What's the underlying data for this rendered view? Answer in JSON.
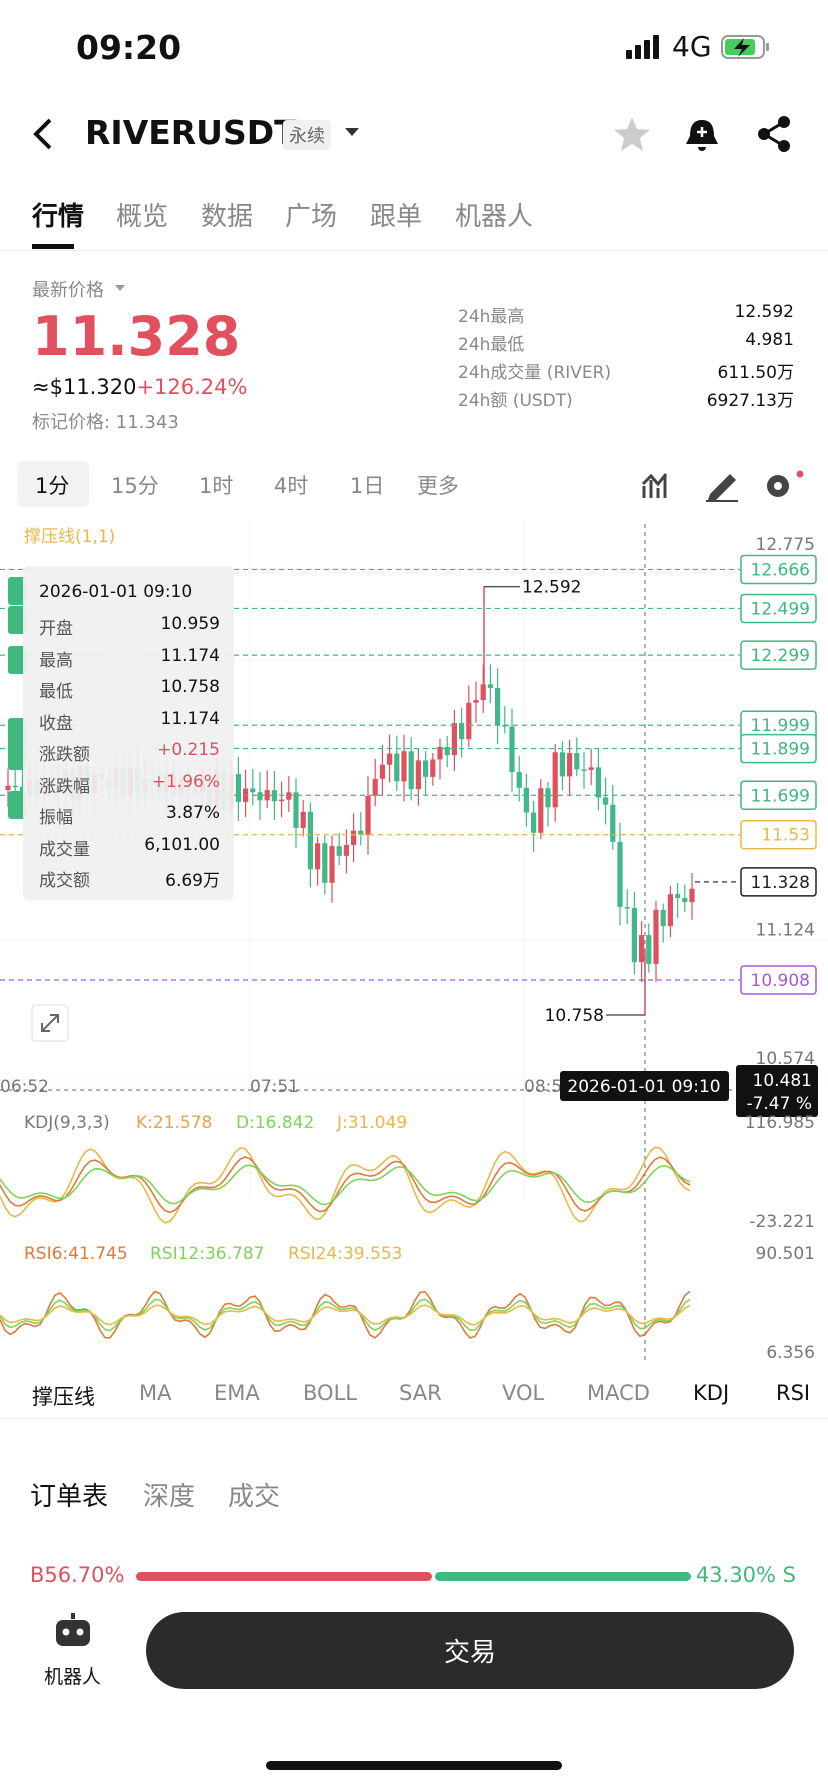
{
  "status": {
    "time": "09:20",
    "network": "4G"
  },
  "header": {
    "symbol": "RIVERUSDT",
    "tag": "永续"
  },
  "tabs": [
    "行情",
    "概览",
    "数据",
    "广场",
    "跟单",
    "机器人"
  ],
  "price": {
    "label": "最新价格",
    "last": "11.328",
    "usd": "≈$11.320",
    "change": "+126.24%",
    "mark": "标记价格: 11.343"
  },
  "stats": [
    [
      "24h最高",
      "12.592"
    ],
    [
      "24h最低",
      "4.981"
    ],
    [
      "24h成交量 (RIVER)",
      "611.50万"
    ],
    [
      "24h额 (USDT)",
      "6927.13万"
    ]
  ],
  "intervals": [
    "1分",
    "15分",
    "1时",
    "4时",
    "1日",
    "更多"
  ],
  "chart": {
    "indicator": "撑压线(1,1)",
    "axis": [
      "12.775",
      "11.124",
      "10.574"
    ],
    "levels": [
      {
        "label": "12.666",
        "color": "#3fb97d"
      },
      {
        "label": "12.499",
        "color": "#3fb97d"
      },
      {
        "label": "12.299",
        "color": "#3fb97d"
      },
      {
        "label": "11.999",
        "color": "#3fb97d"
      },
      {
        "label": "11.899",
        "color": "#3fb97d"
      },
      {
        "label": "11.699",
        "color": "#3fb97d"
      },
      {
        "label": "11.53",
        "color": "#e8b84a"
      },
      {
        "label": "11.328",
        "color": "#222222"
      },
      {
        "label": "10.908",
        "color": "#a35bd6"
      }
    ],
    "high": "12.592",
    "low": "10.758",
    "times": [
      "06:52",
      "07:51",
      "08:5"
    ],
    "cross_time": "2026-01-01 09:10",
    "cross_price": "10.481",
    "cross_change": "-7.47 %",
    "tooltip": {
      "time": "2026-01-01 09:10",
      "rows": [
        [
          "开盘",
          "10.959"
        ],
        [
          "最高",
          "11.174"
        ],
        [
          "最低",
          "10.758"
        ],
        [
          "收盘",
          "11.174"
        ],
        [
          "涨跌额",
          "+0.215"
        ],
        [
          "涨跌幅",
          "+1.96%"
        ],
        [
          "振幅",
          "3.87%"
        ],
        [
          "成交量",
          "6,101.00"
        ],
        [
          "成交额",
          "6.69万"
        ]
      ]
    }
  },
  "kdj": {
    "label": "KDJ(9,3,3)",
    "k": "K:21.578",
    "d": "D:16.842",
    "j": "J:31.049",
    "top": "116.985",
    "bottom": "-23.221"
  },
  "rsi": {
    "r6": "RSI6:41.745",
    "r12": "RSI12:36.787",
    "r24": "RSI24:39.553",
    "top": "90.501",
    "bottom": "6.356"
  },
  "indicator_tabs": [
    "撑压线",
    "MA",
    "EMA",
    "BOLL",
    "SAR",
    "VOL",
    "MACD",
    "KDJ",
    "RSI"
  ],
  "orderbook": {
    "tabs": [
      "订单表",
      "深度",
      "成交"
    ],
    "buy": "B56.70%",
    "sell": "43.30% S"
  },
  "bottom": {
    "robot": "机器人",
    "trade": "交易"
  }
}
